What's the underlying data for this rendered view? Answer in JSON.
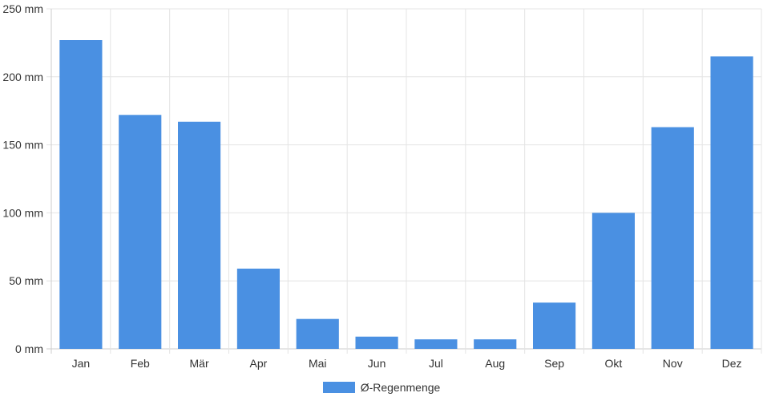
{
  "chart_data": {
    "type": "bar",
    "categories": [
      "Jan",
      "Feb",
      "Mär",
      "Apr",
      "Mai",
      "Jun",
      "Jul",
      "Aug",
      "Sep",
      "Okt",
      "Nov",
      "Dez"
    ],
    "series": [
      {
        "name": "Ø-Regenmenge",
        "values": [
          227,
          172,
          167,
          59,
          22,
          9,
          7,
          7,
          34,
          100,
          163,
          215
        ]
      }
    ],
    "y_ticks": [
      "0 mm",
      "50 mm",
      "100 mm",
      "150 mm",
      "200 mm",
      "250 mm"
    ],
    "ylim": [
      0,
      250
    ],
    "y_unit": "mm",
    "grid": true,
    "legend_position": "bottom",
    "colors": {
      "bar": "#4a90e2",
      "grid": "#e4e4e4",
      "axis": "#cccccc",
      "text": "#333333"
    }
  }
}
